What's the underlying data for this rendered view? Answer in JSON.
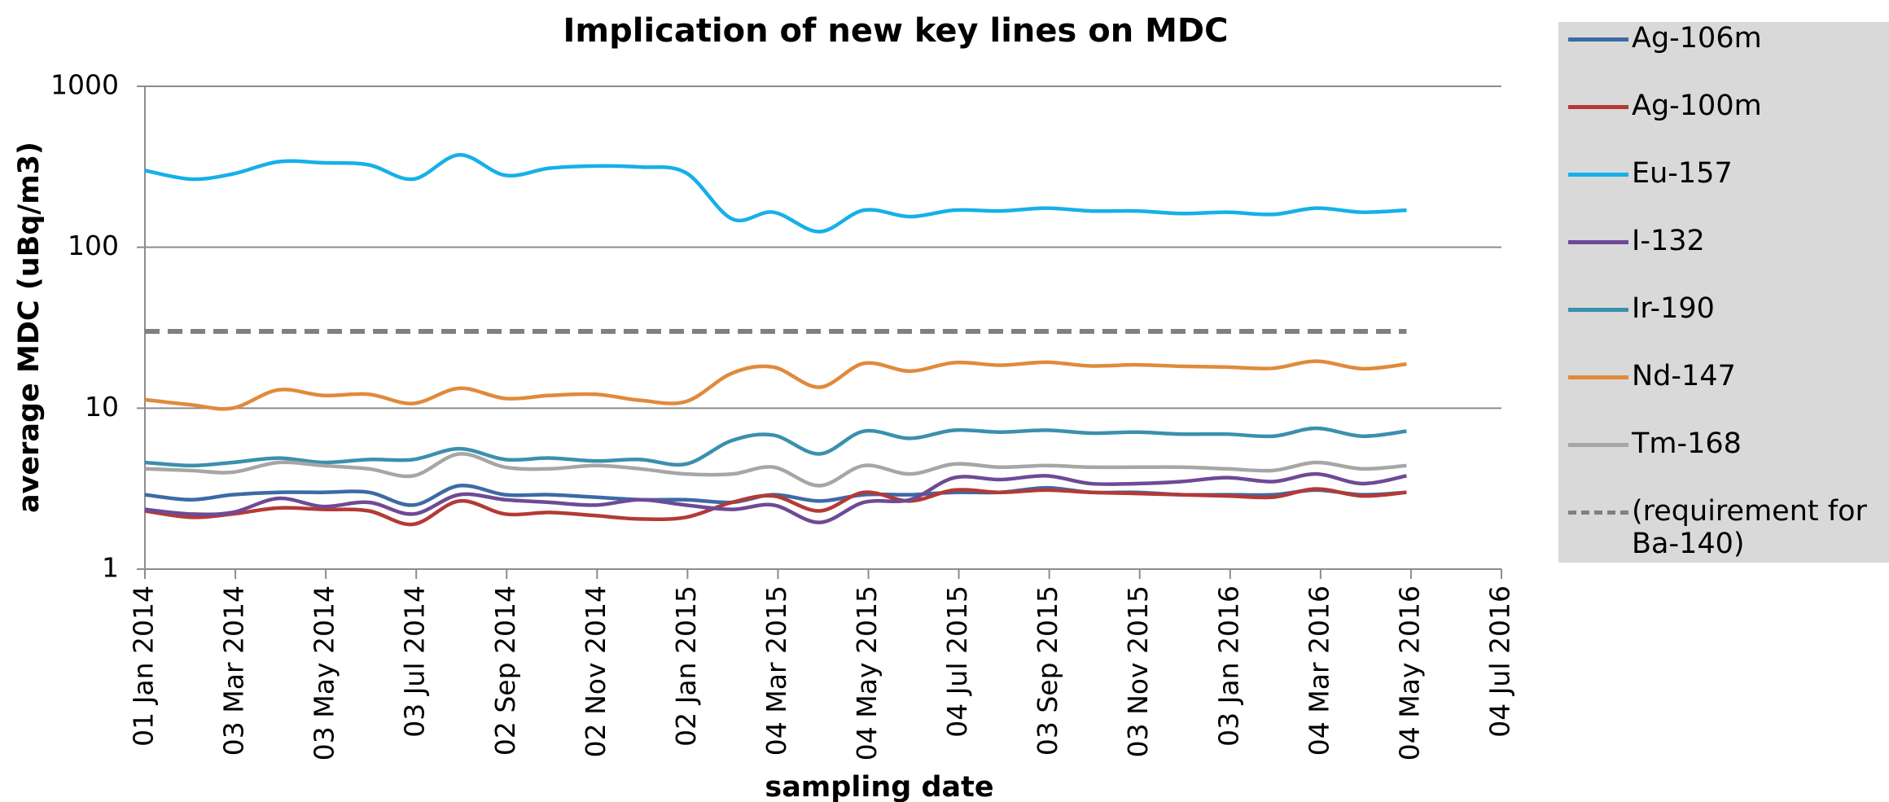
{
  "chart_data": {
    "type": "line",
    "title": "Implication of new key lines on MDC",
    "x_label": "sampling date",
    "y_label": "average MDC (uBq/m3)",
    "log_y": true,
    "grid": true,
    "legend": "right",
    "smooth": true,
    "ylim": [
      1,
      1000
    ],
    "yticks": [
      1,
      10,
      100,
      1000
    ],
    "xlim": [
      "2014-01-01",
      "2016-07-04"
    ],
    "xticks": [
      {
        "value": "2014-01-01",
        "label": "01 Jan 2014"
      },
      {
        "value": "2014-03-03",
        "label": "03 Mar 2014"
      },
      {
        "value": "2014-05-03",
        "label": "03 May 2014"
      },
      {
        "value": "2014-07-03",
        "label": "03 Jul 2014"
      },
      {
        "value": "2014-09-02",
        "label": "02 Sep 2014"
      },
      {
        "value": "2014-11-02",
        "label": "02 Nov 2014"
      },
      {
        "value": "2015-01-02",
        "label": "02 Jan 2015"
      },
      {
        "value": "2015-03-04",
        "label": "04 Mar 2015"
      },
      {
        "value": "2015-05-04",
        "label": "04 May 2015"
      },
      {
        "value": "2015-07-04",
        "label": "04 Jul 2015"
      },
      {
        "value": "2015-09-03",
        "label": "03 Sep 2015"
      },
      {
        "value": "2015-11-03",
        "label": "03 Nov 2015"
      },
      {
        "value": "2016-01-03",
        "label": "03 Jan 2016"
      },
      {
        "value": "2016-03-04",
        "label": "04 Mar 2016"
      },
      {
        "value": "2016-05-04",
        "label": "04 May 2016"
      },
      {
        "value": "2016-07-04",
        "label": "04 Jul 2016"
      }
    ],
    "x": [
      "2014-01-01",
      "2014-02-01",
      "2014-03-01",
      "2014-04-01",
      "2014-05-01",
      "2014-06-01",
      "2014-07-01",
      "2014-08-01",
      "2014-09-01",
      "2014-10-01",
      "2014-11-01",
      "2014-12-01",
      "2015-01-01",
      "2015-02-01",
      "2015-03-01",
      "2015-04-01",
      "2015-05-01",
      "2015-06-01",
      "2015-07-01",
      "2015-08-01",
      "2015-09-01",
      "2015-10-01",
      "2015-11-01",
      "2015-12-01",
      "2016-01-01",
      "2016-02-01",
      "2016-03-01",
      "2016-04-01",
      "2016-05-01"
    ],
    "series": [
      {
        "name": "Ag-106m",
        "color": "#3d6aa5",
        "values": [
          2.9,
          2.7,
          2.9,
          3.0,
          3.0,
          3.0,
          2.5,
          3.3,
          2.9,
          2.9,
          2.8,
          2.7,
          2.7,
          2.6,
          2.9,
          2.65,
          2.9,
          2.9,
          3.0,
          3.0,
          3.2,
          3.0,
          3.0,
          2.9,
          2.9,
          2.9,
          3.1,
          2.9,
          3.0
        ]
      },
      {
        "name": "Ag-100m",
        "color": "#b33a36",
        "values": [
          2.3,
          2.1,
          2.2,
          2.4,
          2.35,
          2.3,
          1.9,
          2.65,
          2.2,
          2.25,
          2.15,
          2.05,
          2.1,
          2.6,
          2.85,
          2.3,
          3.0,
          2.65,
          3.1,
          3.0,
          3.1,
          3.0,
          2.95,
          2.9,
          2.85,
          2.8,
          3.15,
          2.85,
          3.0
        ]
      },
      {
        "name": "Eu-157",
        "color": "#16b0e8",
        "values": [
          300,
          265,
          285,
          340,
          335,
          325,
          265,
          375,
          280,
          310,
          320,
          315,
          290,
          150,
          165,
          125,
          170,
          155,
          170,
          168,
          175,
          168,
          168,
          162,
          165,
          160,
          175,
          165,
          170
        ]
      },
      {
        "name": "I-132",
        "color": "#6e4a96",
        "values": [
          2.35,
          2.2,
          2.25,
          2.75,
          2.45,
          2.6,
          2.2,
          2.9,
          2.7,
          2.6,
          2.5,
          2.7,
          2.5,
          2.35,
          2.5,
          1.95,
          2.6,
          2.7,
          3.7,
          3.6,
          3.8,
          3.4,
          3.4,
          3.5,
          3.7,
          3.5,
          3.9,
          3.4,
          3.8
        ]
      },
      {
        "name": "Ir-190",
        "color": "#3a90ad",
        "values": [
          4.6,
          4.4,
          4.6,
          4.9,
          4.6,
          4.8,
          4.8,
          5.6,
          4.8,
          4.9,
          4.7,
          4.8,
          4.5,
          6.3,
          6.8,
          5.2,
          7.2,
          6.5,
          7.3,
          7.1,
          7.3,
          7.0,
          7.1,
          6.9,
          6.9,
          6.7,
          7.5,
          6.7,
          7.2
        ]
      },
      {
        "name": "Nd-147",
        "color": "#e08a3c",
        "values": [
          11.3,
          10.5,
          10,
          13,
          12,
          12.2,
          10.7,
          13.3,
          11.5,
          12,
          12.2,
          11.2,
          11,
          16.5,
          18,
          13.5,
          19,
          17,
          19.2,
          18.5,
          19.3,
          18.3,
          18.6,
          18.2,
          18,
          17.7,
          19.6,
          17.6,
          18.8
        ]
      },
      {
        "name": "Tm-168",
        "color": "#a6a6a6",
        "values": [
          4.2,
          4.1,
          4.0,
          4.6,
          4.4,
          4.2,
          3.8,
          5.2,
          4.3,
          4.2,
          4.4,
          4.2,
          3.9,
          3.9,
          4.3,
          3.3,
          4.4,
          3.9,
          4.5,
          4.3,
          4.4,
          4.3,
          4.3,
          4.3,
          4.2,
          4.1,
          4.6,
          4.2,
          4.4
        ]
      },
      {
        "name": "(requirement for Ba-140)",
        "color": "#808080",
        "dashed": true,
        "values": [
          30,
          30,
          30,
          30,
          30,
          30,
          30,
          30,
          30,
          30,
          30,
          30,
          30,
          30,
          30,
          30,
          30,
          30,
          30,
          30,
          30,
          30,
          30,
          30,
          30,
          30,
          30,
          30,
          30
        ]
      }
    ]
  }
}
